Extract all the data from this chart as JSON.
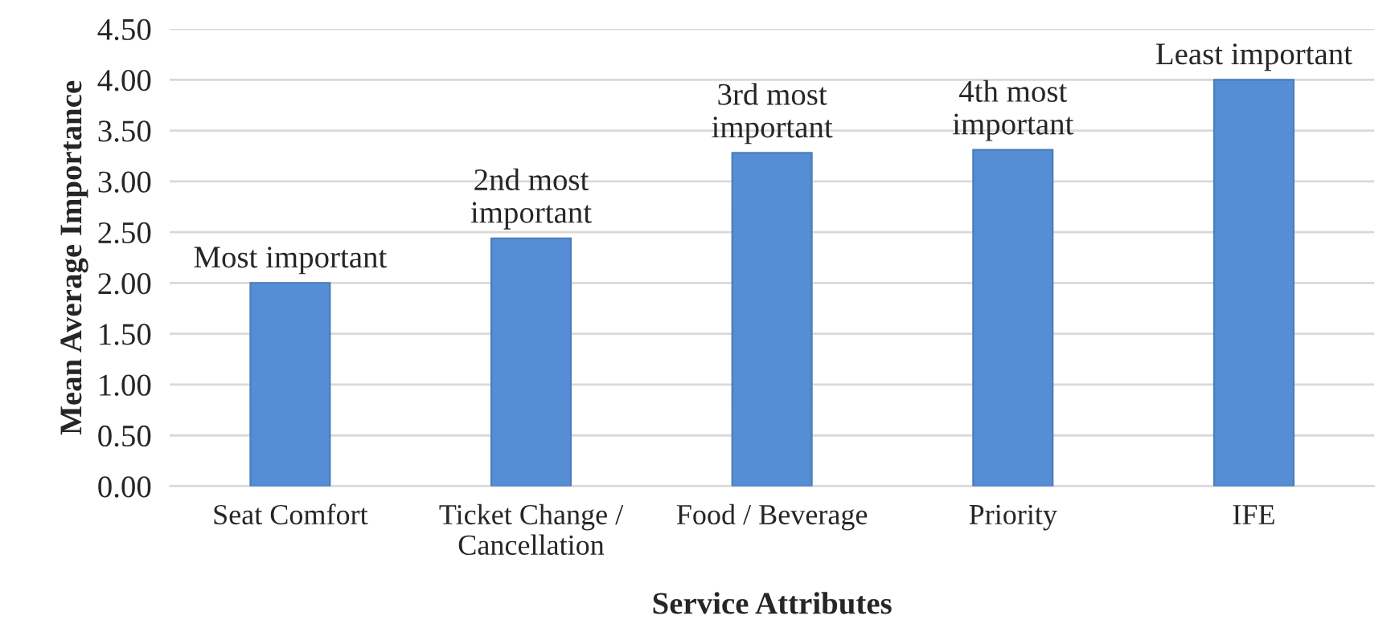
{
  "chart_data": {
    "type": "bar",
    "xlabel": "Service Attributes",
    "ylabel": "Mean Average Importance",
    "categories": [
      "Seat Comfort",
      "Ticket Change /\nCancellation",
      "Food / Beverage",
      "Priority",
      "IFE"
    ],
    "values": [
      2.0,
      2.44,
      3.28,
      3.31,
      4.0
    ],
    "color": "#558ed5",
    "ylim": [
      0,
      4.5
    ],
    "yticks": [
      {
        "value": 0,
        "label": "0.00"
      },
      {
        "value": 0.5,
        "label": "0.50"
      },
      {
        "value": 1,
        "label": "1.00"
      },
      {
        "value": 1.5,
        "label": "1.50"
      },
      {
        "value": 2,
        "label": "2.00"
      },
      {
        "value": 2.5,
        "label": "2.50"
      },
      {
        "value": 3,
        "label": "3.00"
      },
      {
        "value": 3.5,
        "label": "3.50"
      },
      {
        "value": 4,
        "label": "4.00"
      },
      {
        "value": 4.5,
        "label": "4.50"
      }
    ],
    "grid": "y",
    "annotations": [
      {
        "text": "Most important",
        "x": "Seat Comfort",
        "y": 2.0
      },
      {
        "text": "2nd most\nimportant",
        "x": "Ticket Change /\nCancellation",
        "y": 2.44
      },
      {
        "text": "3rd most\nimportant",
        "x": "Food / Beverage",
        "y": 3.28
      },
      {
        "text": "4th most\nimportant",
        "x": "Priority",
        "y": 3.31
      },
      {
        "text": "Least important",
        "x": "IFE",
        "y": 4.0
      }
    ]
  }
}
